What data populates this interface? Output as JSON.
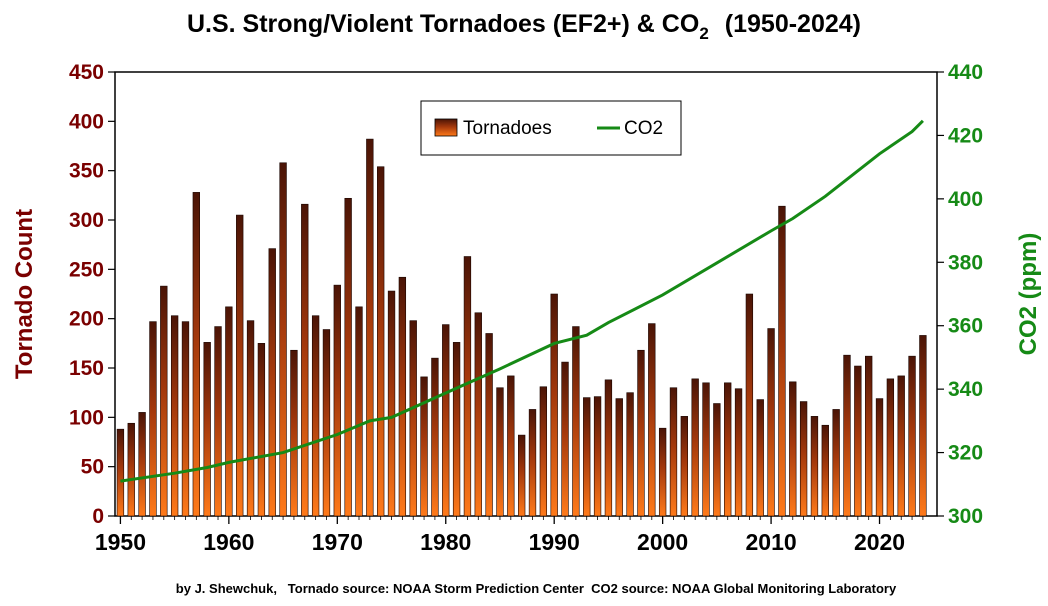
{
  "chart_data": {
    "type": "bar",
    "title_main": "U.S. Strong/Violent Tornadoes (EF2+) & CO",
    "title_sub": "2",
    "title_years": "(1950-2024)",
    "ylabel": "Tornado Count",
    "y2label": "CO2 (ppm)",
    "credit": "by J. Shewchuk,   Tornado source: NOAA Storm Prediction Center  CO2 source: NOAA Global Monitoring Laboratory",
    "ylim": [
      0,
      450
    ],
    "y2lim": [
      300,
      440
    ],
    "y_ticks": [
      0,
      50,
      100,
      150,
      200,
      250,
      300,
      350,
      400,
      450
    ],
    "y2_ticks": [
      300,
      320,
      340,
      360,
      380,
      400,
      420,
      440
    ],
    "x_ticks": [
      1950,
      1960,
      1970,
      1980,
      1990,
      2000,
      2010,
      2020
    ],
    "grid": false,
    "legend_position": "top-center",
    "colors": {
      "bar_top": "#4a1406",
      "bar_bottom": "#ff7a1a",
      "co2_line": "#168a16",
      "left_axis": "#7a0000",
      "right_axis": "#168a16"
    },
    "series": [
      {
        "name": "Tornadoes",
        "kind": "bar",
        "axis": "left",
        "x": [
          1950,
          1951,
          1952,
          1953,
          1954,
          1955,
          1956,
          1957,
          1958,
          1959,
          1960,
          1961,
          1962,
          1963,
          1964,
          1965,
          1966,
          1967,
          1968,
          1969,
          1970,
          1971,
          1972,
          1973,
          1974,
          1975,
          1976,
          1977,
          1978,
          1979,
          1980,
          1981,
          1982,
          1983,
          1984,
          1985,
          1986,
          1987,
          1988,
          1989,
          1990,
          1991,
          1992,
          1993,
          1994,
          1995,
          1996,
          1997,
          1998,
          1999,
          2000,
          2001,
          2002,
          2003,
          2004,
          2005,
          2006,
          2007,
          2008,
          2009,
          2010,
          2011,
          2012,
          2013,
          2014,
          2015,
          2016,
          2017,
          2018,
          2019,
          2020,
          2021,
          2022,
          2023,
          2024
        ],
        "values": [
          88,
          94,
          105,
          197,
          233,
          203,
          197,
          328,
          176,
          192,
          212,
          305,
          198,
          175,
          271,
          358,
          168,
          316,
          203,
          189,
          234,
          322,
          212,
          382,
          354,
          228,
          242,
          198,
          141,
          160,
          194,
          176,
          263,
          206,
          185,
          130,
          142,
          82,
          108,
          131,
          225,
          156,
          192,
          120,
          121,
          138,
          119,
          125,
          168,
          195,
          89,
          130,
          101,
          139,
          135,
          114,
          135,
          129,
          225,
          118,
          190,
          314,
          136,
          116,
          101,
          92,
          108,
          163,
          152,
          162,
          119,
          139,
          142,
          162,
          183
        ]
      },
      {
        "name": "CO2",
        "kind": "line",
        "axis": "right",
        "x": [
          1950,
          1955,
          1958,
          1960,
          1965,
          1970,
          1973,
          1975,
          1980,
          1985,
          1990,
          1993,
          1995,
          2000,
          2005,
          2010,
          2012,
          2015,
          2020,
          2023,
          2024
        ],
        "values": [
          311,
          313.5,
          315.3,
          316.9,
          320.0,
          325.7,
          330.0,
          331.1,
          338.8,
          346.4,
          354.4,
          357.0,
          361.0,
          369.7,
          379.8,
          389.9,
          393.8,
          400.8,
          414.2,
          421.2,
          424.6
        ]
      }
    ]
  }
}
